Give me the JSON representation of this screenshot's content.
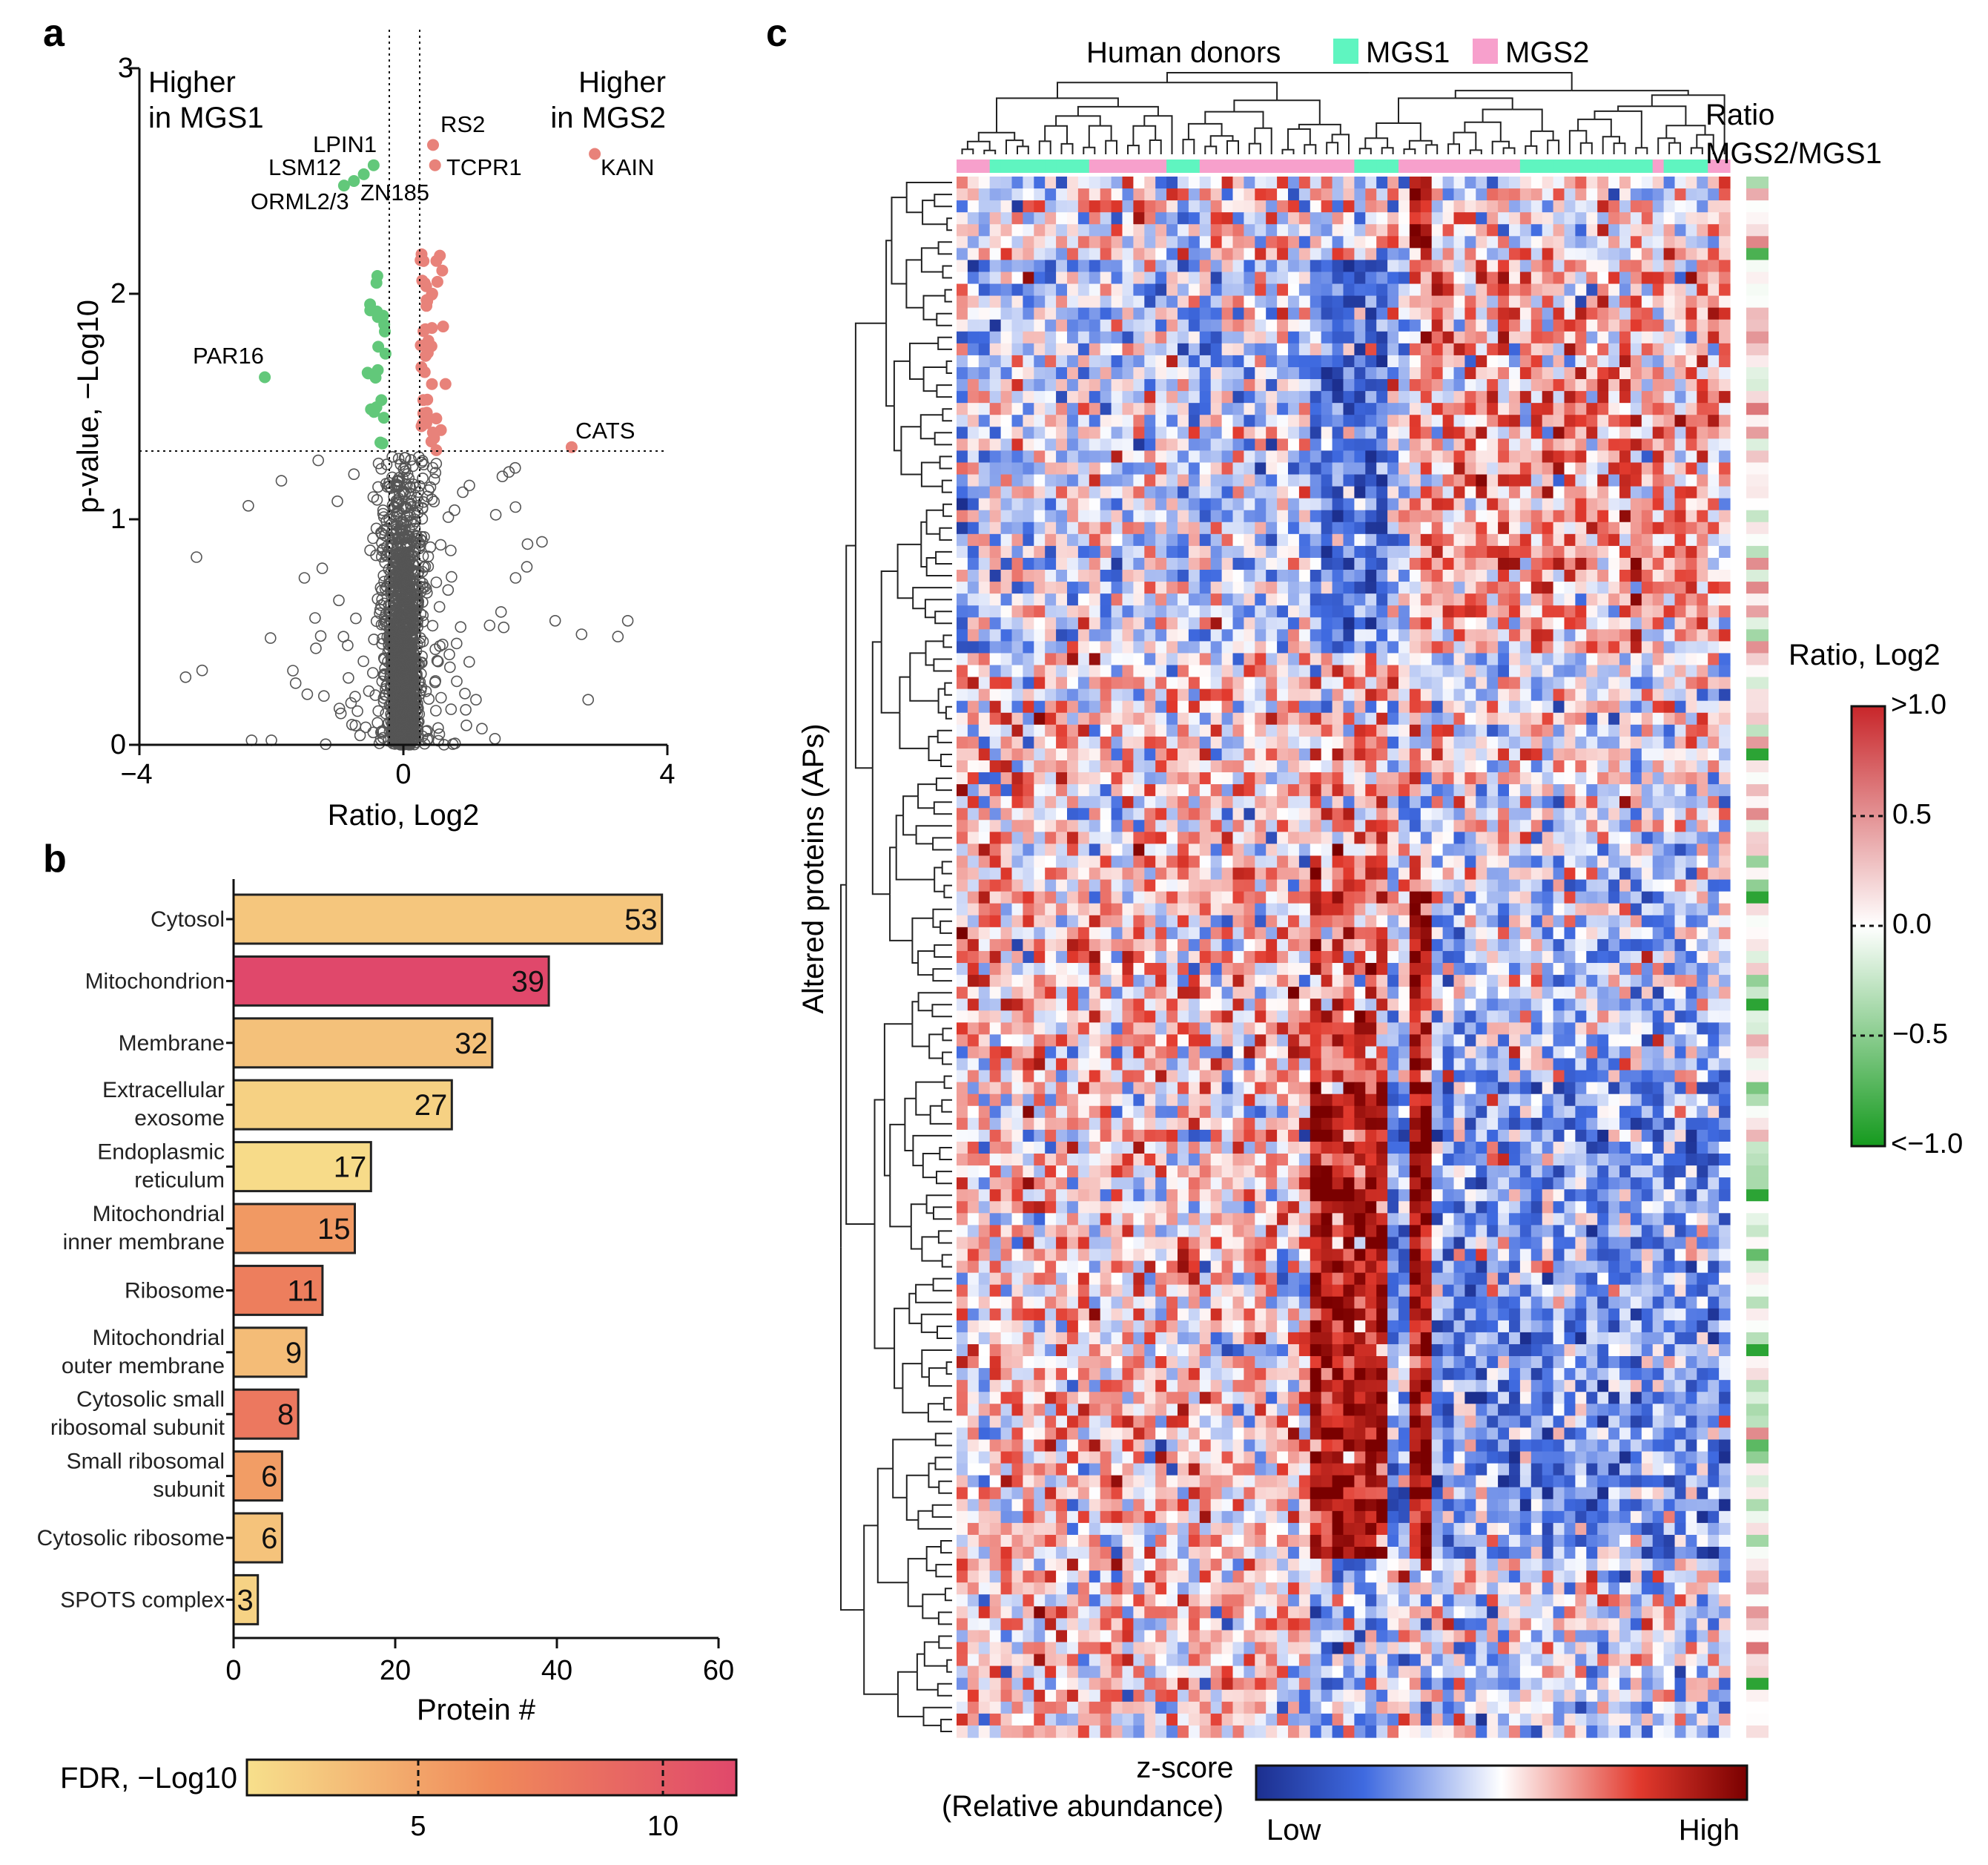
{
  "panels": {
    "a": "a",
    "b": "b",
    "c": "c"
  },
  "chart_data": [
    {
      "type": "scatter",
      "panel": "a",
      "title": "",
      "xlabel": "Ratio, Log2",
      "ylabel": "p-value, −Log10",
      "xlim": [
        -4,
        4
      ],
      "ylim": [
        0,
        3
      ],
      "xticks": [
        "−4",
        "0",
        "4"
      ],
      "yticks": [
        "0",
        "1",
        "2",
        "3"
      ],
      "threshold_y": 1.3,
      "threshold_x": [
        -0.25,
        0.25
      ],
      "region_left": [
        "Higher",
        "in MGS1"
      ],
      "region_right": [
        "Higher",
        "in MGS2"
      ],
      "colors": {
        "up": "#e8827a",
        "down": "#62c87a",
        "ns": "#555555"
      },
      "labeled_points": [
        {
          "label": "LPIN1",
          "x": -0.45,
          "y": 2.57,
          "group": "down"
        },
        {
          "label": "LSM12",
          "x": -0.75,
          "y": 2.5,
          "group": "down"
        },
        {
          "label": "ORML2/3",
          "x": -0.9,
          "y": 2.48,
          "group": "down"
        },
        {
          "label": "ZN185",
          "x": -0.6,
          "y": 2.53,
          "group": "down"
        },
        {
          "label": "PAR16",
          "x": -2.1,
          "y": 1.63,
          "group": "down"
        },
        {
          "label": "RS2",
          "x": 0.45,
          "y": 2.66,
          "group": "up"
        },
        {
          "label": "TCPR1",
          "x": 0.48,
          "y": 2.57,
          "group": "up"
        },
        {
          "label": "KAIN",
          "x": 2.9,
          "y": 2.62,
          "group": "up"
        },
        {
          "label": "CATS",
          "x": 2.55,
          "y": 1.32,
          "group": "up"
        }
      ]
    },
    {
      "type": "bar",
      "panel": "b",
      "orientation": "horizontal",
      "xlabel": "Protein #",
      "xlim": [
        0,
        60
      ],
      "xticks": [
        "0",
        "20",
        "40",
        "60"
      ],
      "categories": [
        [
          "Cytosol"
        ],
        [
          "Mitochondrion"
        ],
        [
          "Membrane"
        ],
        [
          "Extracellular",
          "exosome"
        ],
        [
          "Endoplasmic",
          "reticulum"
        ],
        [
          "Mitochondrial",
          "inner membrane"
        ],
        [
          "Ribosome"
        ],
        [
          "Mitochondrial",
          "outer membrane"
        ],
        [
          "Cytosolic small",
          "ribosomal subunit"
        ],
        [
          "Small ribosomal",
          "subunit"
        ],
        [
          "Cytosolic ribosome"
        ],
        [
          "SPOTS complex"
        ]
      ],
      "values": [
        53,
        39,
        32,
        27,
        17,
        15,
        11,
        9,
        8,
        6,
        6,
        3
      ],
      "value_labels": [
        "53",
        "39",
        "32",
        "27",
        "17",
        "15",
        "11",
        "9",
        "8",
        "6",
        "6",
        "3"
      ],
      "fdr": [
        3.0,
        11.5,
        3.3,
        2.4,
        1.8,
        5.6,
        7.4,
        3.6,
        7.9,
        5.4,
        3.2,
        2.3
      ],
      "colorbar": {
        "label": "FDR, −Log10",
        "range": [
          1.5,
          11.5
        ],
        "ticks": [
          "5",
          "10"
        ],
        "colors": [
          "#f7e08c",
          "#f08a5a",
          "#e0486b"
        ]
      }
    },
    {
      "type": "heatmap",
      "panel": "c",
      "title": "Human donors",
      "legend": [
        {
          "name": "MGS1",
          "color": "#5ff5c0"
        },
        {
          "name": "MGS2",
          "color": "#f7a0cc"
        }
      ],
      "ylabel": "Altered proteins (APs)",
      "n_rows": 131,
      "n_cols": 70,
      "side_bar_title": [
        "Ratio",
        "MGS2/MGS1"
      ],
      "colorbar_ratio": {
        "label": "Ratio, Log2",
        "ticks": [
          ">1.0",
          "0.5",
          "0.0",
          "−0.5",
          "<−1.0"
        ],
        "colors": [
          "#c8262a",
          "#ffffff",
          "#159a1e"
        ]
      },
      "colorbar_z": {
        "label": [
          "z-score",
          "(Relative abundance)"
        ],
        "low": "Low",
        "high": "High",
        "colors": [
          "#1c2f8f",
          "#3f6ae0",
          "#ffffff",
          "#e23a2e",
          "#7a0000"
        ]
      }
    }
  ]
}
